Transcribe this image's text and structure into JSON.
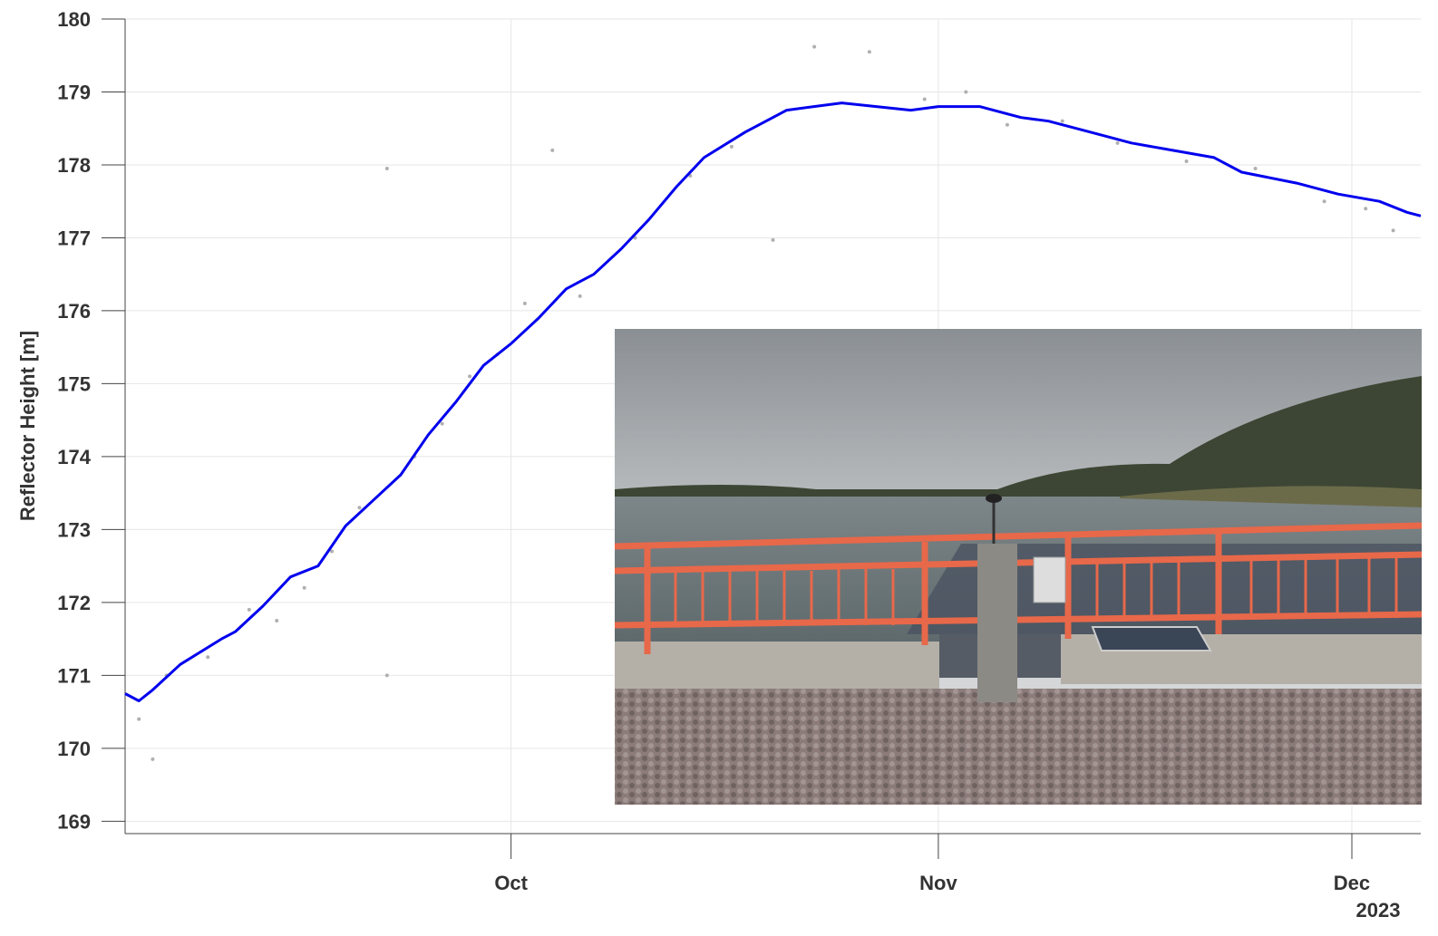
{
  "chart_data": {
    "type": "line",
    "y_label": "Reflector Height [m]",
    "x_year_label": "2023",
    "xlim": [
      "2023-09-03",
      "2023-12-06"
    ],
    "ylim": [
      168.83,
      180
    ],
    "yticks": [
      169,
      170,
      171,
      172,
      173,
      174,
      175,
      176,
      177,
      178,
      179,
      180
    ],
    "xticks": [
      {
        "value": "2023-10-01",
        "label": "Oct"
      },
      {
        "value": "2023-11-01",
        "label": "Nov"
      },
      {
        "value": "2023-12-01",
        "label": "Dec"
      }
    ],
    "grid": true,
    "line": {
      "color": "#0000ee",
      "x": [
        "2023-09-03",
        "2023-09-04",
        "2023-09-05",
        "2023-09-07",
        "2023-09-10",
        "2023-09-11",
        "2023-09-13",
        "2023-09-15",
        "2023-09-17",
        "2023-09-19",
        "2023-09-21",
        "2023-09-23",
        "2023-09-25",
        "2023-09-27",
        "2023-09-29",
        "2023-10-01",
        "2023-10-03",
        "2023-10-05",
        "2023-10-07",
        "2023-10-09",
        "2023-10-11",
        "2023-10-13",
        "2023-10-15",
        "2023-10-18",
        "2023-10-21",
        "2023-10-25",
        "2023-10-30",
        "2023-11-01",
        "2023-11-04",
        "2023-11-07",
        "2023-11-09",
        "2023-11-12",
        "2023-11-15",
        "2023-11-18",
        "2023-11-21",
        "2023-11-23",
        "2023-11-27",
        "2023-11-30",
        "2023-12-03",
        "2023-12-05",
        "2023-12-06"
      ],
      "values": [
        170.75,
        170.65,
        170.8,
        171.15,
        171.5,
        171.6,
        171.95,
        172.35,
        172.5,
        173.05,
        173.4,
        173.75,
        174.3,
        174.75,
        175.25,
        175.55,
        175.9,
        176.3,
        176.5,
        176.85,
        177.25,
        177.7,
        178.1,
        178.45,
        178.75,
        178.85,
        178.75,
        178.8,
        178.8,
        178.65,
        178.6,
        178.45,
        178.3,
        178.2,
        178.1,
        177.9,
        177.75,
        177.6,
        177.5,
        177.35,
        177.3
      ]
    },
    "points": {
      "color": "#b0b0b0",
      "x": [
        "2023-09-04",
        "2023-09-05",
        "2023-09-06",
        "2023-09-09",
        "2023-09-12",
        "2023-09-14",
        "2023-09-16",
        "2023-09-18",
        "2023-09-20",
        "2023-09-22",
        "2023-09-22",
        "2023-09-24",
        "2023-09-26",
        "2023-09-28",
        "2023-09-30",
        "2023-10-02",
        "2023-10-04",
        "2023-10-06",
        "2023-10-10",
        "2023-10-14",
        "2023-10-17",
        "2023-10-20",
        "2023-10-23",
        "2023-10-27",
        "2023-10-31",
        "2023-11-03",
        "2023-11-06",
        "2023-11-10",
        "2023-11-14",
        "2023-11-19",
        "2023-11-24",
        "2023-11-29",
        "2023-12-02",
        "2023-12-04"
      ],
      "values": [
        170.4,
        169.85,
        171.0,
        171.25,
        171.9,
        171.75,
        172.2,
        172.7,
        173.3,
        171.0,
        177.95,
        174.0,
        174.45,
        175.1,
        175.4,
        176.1,
        178.2,
        176.2,
        177.0,
        177.85,
        178.25,
        176.97,
        179.62,
        179.55,
        178.9,
        179.0,
        178.55,
        178.6,
        178.3,
        178.05,
        177.95,
        177.5,
        177.4,
        177.1
      ]
    }
  }
}
